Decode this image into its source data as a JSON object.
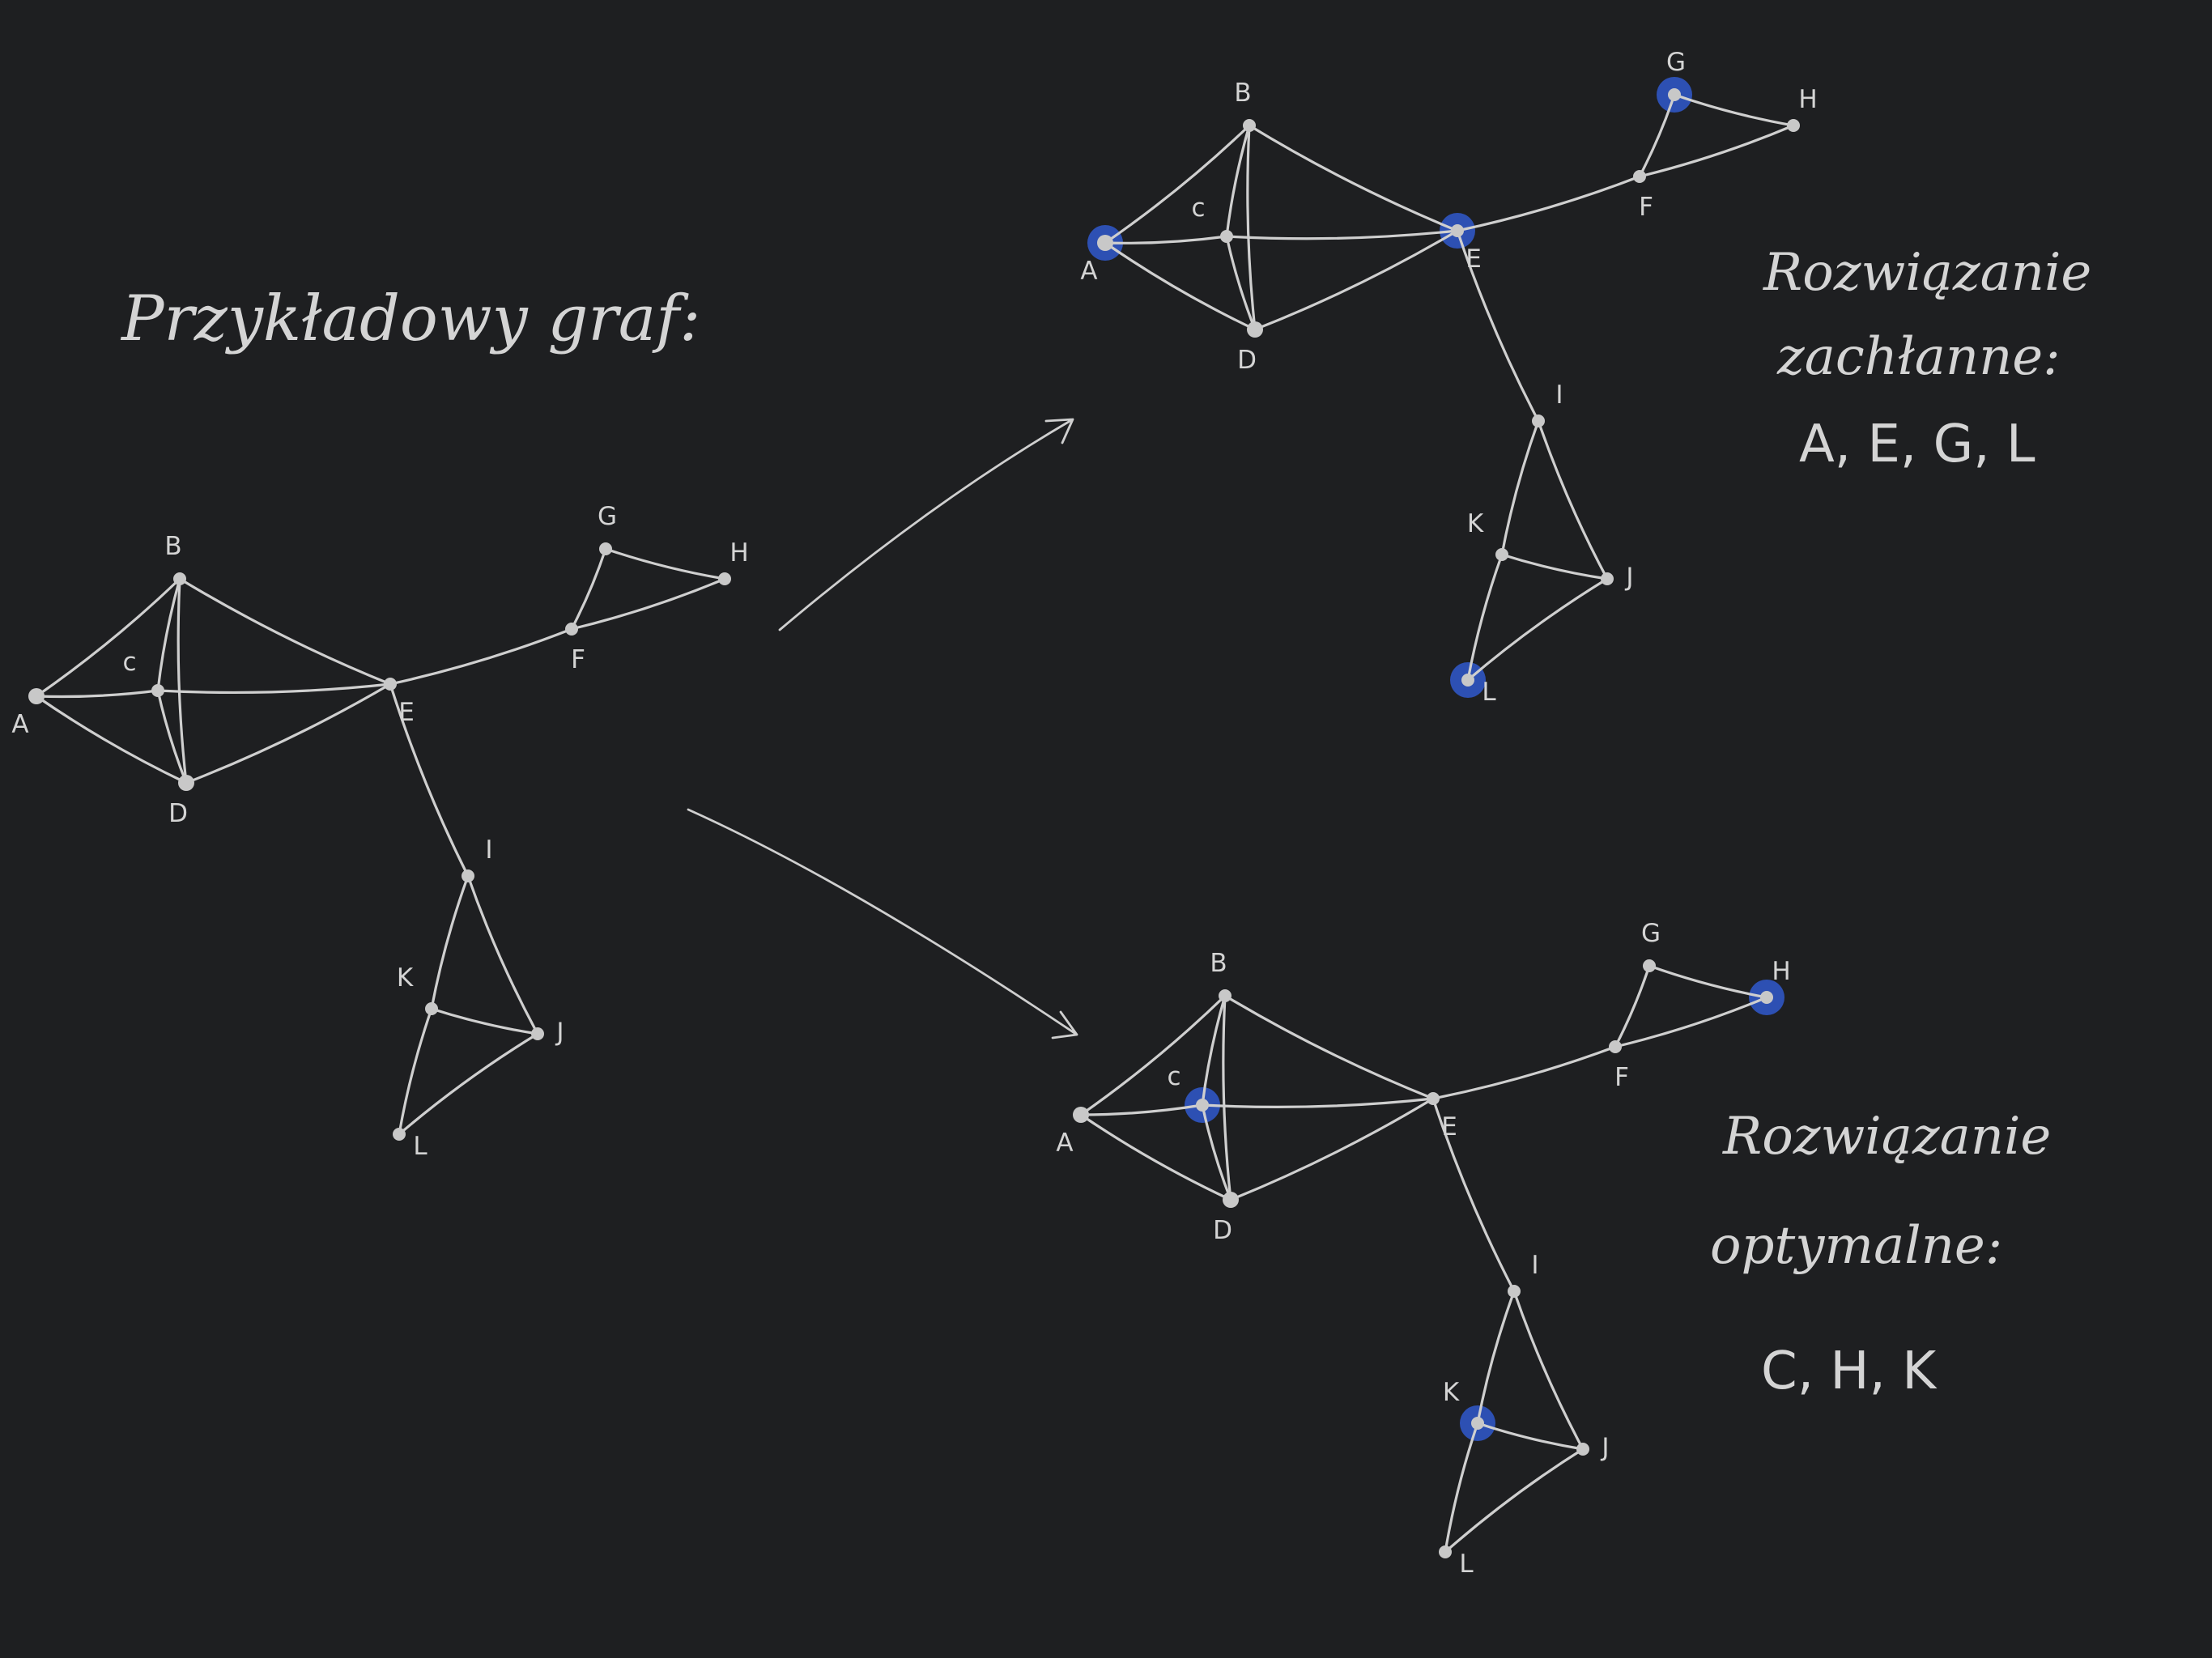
{
  "title": "Przykładowy graf:",
  "arrows": [
    {
      "id": "to-greedy"
    },
    {
      "id": "to-optimal"
    }
  ],
  "graphs": [
    {
      "id": "example",
      "nodes": {
        "A": {
          "label": "A"
        },
        "B": {
          "label": "B"
        },
        "C": {
          "label": "c"
        },
        "D": {
          "label": "D"
        },
        "E": {
          "label": "E"
        },
        "F": {
          "label": "F"
        },
        "G": {
          "label": "G"
        },
        "H": {
          "label": "H"
        },
        "I": {
          "label": "I"
        },
        "J": {
          "label": "J"
        },
        "K": {
          "label": "K"
        },
        "L": {
          "label": "L"
        }
      },
      "highlighted": []
    },
    {
      "id": "greedy",
      "nodes": {
        "A": {
          "label": "A"
        },
        "B": {
          "label": "B"
        },
        "C": {
          "label": "c"
        },
        "D": {
          "label": "D"
        },
        "E": {
          "label": "E"
        },
        "F": {
          "label": "F"
        },
        "G": {
          "label": "G"
        },
        "H": {
          "label": "H"
        },
        "I": {
          "label": "I"
        },
        "J": {
          "label": "J"
        },
        "K": {
          "label": "K"
        },
        "L": {
          "label": "L"
        }
      },
      "highlighted": [
        "A",
        "E",
        "G",
        "L"
      ]
    },
    {
      "id": "optimal",
      "nodes": {
        "A": {
          "label": "A"
        },
        "B": {
          "label": "B"
        },
        "C": {
          "label": "c"
        },
        "D": {
          "label": "D"
        },
        "E": {
          "label": "E"
        },
        "F": {
          "label": "F"
        },
        "G": {
          "label": "G"
        },
        "H": {
          "label": "H"
        },
        "I": {
          "label": "I"
        },
        "J": {
          "label": "J"
        },
        "K": {
          "label": "K"
        },
        "L": {
          "label": "L"
        }
      },
      "highlighted": [
        "C",
        "H",
        "K"
      ]
    }
  ],
  "edges": [
    [
      "A",
      "B"
    ],
    [
      "A",
      "C"
    ],
    [
      "A",
      "D"
    ],
    [
      "B",
      "C"
    ],
    [
      "B",
      "D"
    ],
    [
      "B",
      "E"
    ],
    [
      "C",
      "D"
    ],
    [
      "C",
      "E"
    ],
    [
      "D",
      "E"
    ],
    [
      "E",
      "F"
    ],
    [
      "F",
      "G"
    ],
    [
      "F",
      "H"
    ],
    [
      "G",
      "H"
    ],
    [
      "E",
      "I"
    ],
    [
      "I",
      "K"
    ],
    [
      "I",
      "J"
    ],
    [
      "K",
      "J"
    ],
    [
      "K",
      "L"
    ],
    [
      "J",
      "L"
    ]
  ],
  "greedy_caption": {
    "line1": "Rozwiązanie",
    "line2": "zachłanne:",
    "answer": "A, E, G, L"
  },
  "optimal_caption": {
    "line1": "Rozwiązanie",
    "line2": "optymalne:",
    "answer": "C, H, K"
  },
  "colors": {
    "background": "#1e1f21",
    "stroke": "#cfcfcf",
    "highlight": "#2d50b3"
  }
}
